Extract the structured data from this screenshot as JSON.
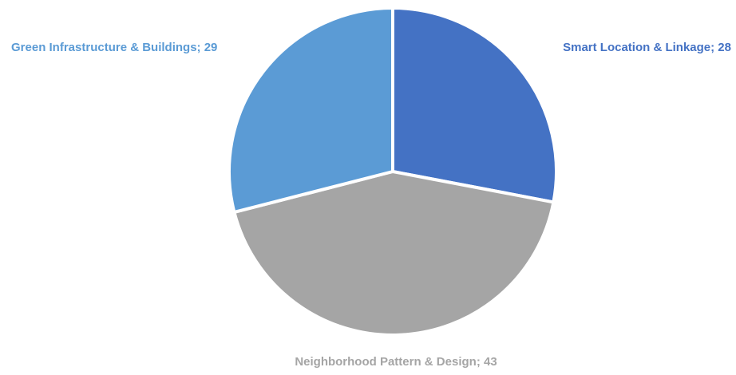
{
  "chart_data": {
    "type": "pie",
    "title": "",
    "slices": [
      {
        "label": "Smart Location & Linkage",
        "value": 28,
        "color": "#4472C4",
        "label_text": "Smart Location & Linkage; 28"
      },
      {
        "label": "Neighborhood Pattern & Design",
        "value": 43,
        "color": "#A5A5A5",
        "label_text": "Neighborhood Pattern & Design; 43"
      },
      {
        "label": "Green Infrastructure & Buildings",
        "value": 29,
        "color": "#5B9BD5",
        "label_text": "Green Infrastructure & Buildings; 29"
      }
    ],
    "start_angle_deg": 0,
    "direction": "clockwise",
    "legend": "none",
    "label_colors": [
      "#4472C4",
      "#A5A5A5",
      "#5B9BD5"
    ]
  }
}
